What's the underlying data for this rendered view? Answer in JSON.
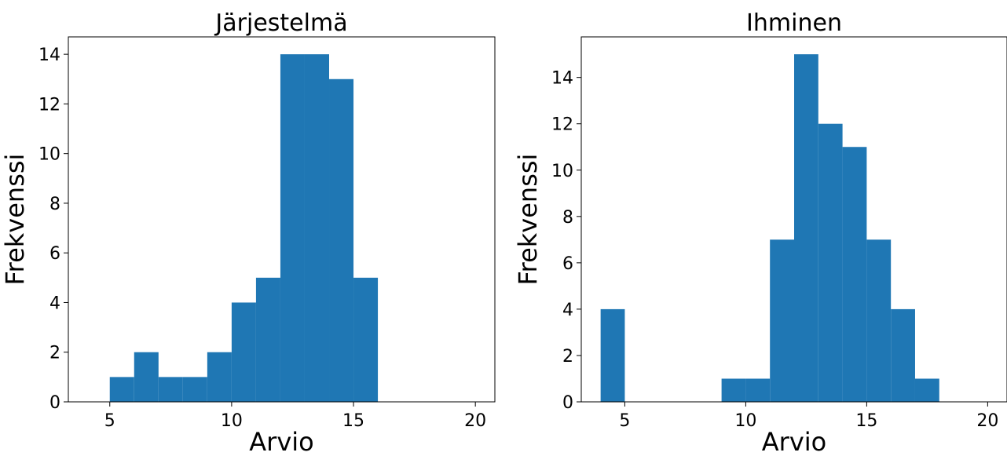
{
  "bar_color": "#1f77b4",
  "chart_data": [
    {
      "type": "bar",
      "title": "Järjestelmä",
      "xlabel": "Arvio",
      "ylabel": "Frekvenssi",
      "bin_edges": [
        5,
        6,
        7,
        8,
        9,
        10,
        11,
        12,
        13,
        14,
        15,
        16
      ],
      "values": [
        1,
        2,
        1,
        1,
        2,
        4,
        5,
        14,
        14,
        13,
        5
      ],
      "xlim": [
        3.3,
        20.8
      ],
      "ylim": [
        0,
        14.7
      ],
      "xticks": [
        5,
        10,
        15,
        20
      ],
      "yticks": [
        0,
        2,
        4,
        6,
        8,
        10,
        12,
        14
      ],
      "grid": false
    },
    {
      "type": "bar",
      "title": "Ihminen",
      "xlabel": "Arvio",
      "ylabel": "Frekvenssi",
      "bin_edges": [
        4,
        5,
        6,
        7,
        8,
        9,
        10,
        11,
        12,
        13,
        14,
        15,
        16,
        17,
        18
      ],
      "values": [
        4,
        0,
        0,
        0,
        0,
        1,
        1,
        7,
        15,
        12,
        11,
        7,
        4,
        1
      ],
      "xlim": [
        3.2,
        20.8
      ],
      "ylim": [
        0,
        15.75
      ],
      "xticks": [
        5,
        10,
        15,
        20
      ],
      "yticks": [
        0,
        2,
        4,
        6,
        8,
        10,
        12,
        14
      ],
      "grid": false
    }
  ]
}
